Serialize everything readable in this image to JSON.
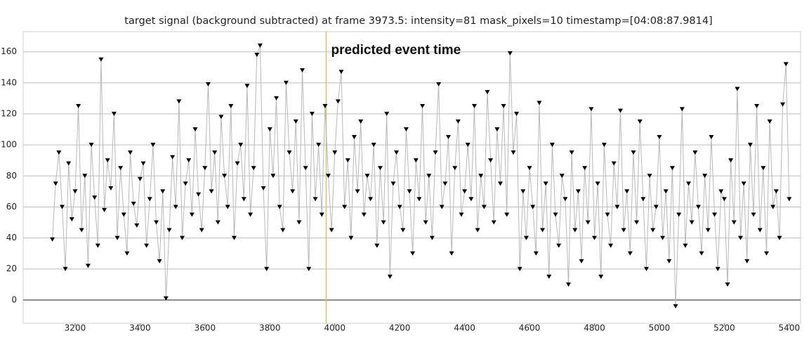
{
  "chart_data": {
    "type": "scatter",
    "title": "target signal (background subtracted) at frame 3973.5: intensity=81 mask_pixels=10 timestamp=[04:08:87.9814]",
    "annotation": "predicted event time",
    "event_x": 3973.5,
    "event_color": "#c8c86e",
    "xlim": [
      3040,
      5435
    ],
    "ylim": [
      -15,
      173
    ],
    "xticks": [
      3200,
      3400,
      3600,
      3800,
      4000,
      4200,
      4400,
      4600,
      4800,
      5000,
      5200,
      5400
    ],
    "yticks": [
      0,
      20,
      40,
      60,
      80,
      100,
      120,
      140,
      160
    ],
    "grid": true,
    "series": [
      {
        "color": "#000000",
        "line_color": "#b8b8b8",
        "x": [
          3130,
          3140,
          3150,
          3160,
          3170,
          3180,
          3190,
          3200,
          3210,
          3220,
          3230,
          3240,
          3250,
          3260,
          3270,
          3280,
          3290,
          3300,
          3310,
          3320,
          3330,
          3340,
          3350,
          3360,
          3370,
          3380,
          3390,
          3400,
          3410,
          3420,
          3430,
          3440,
          3450,
          3460,
          3470,
          3480,
          3490,
          3500,
          3510,
          3520,
          3530,
          3540,
          3550,
          3560,
          3570,
          3580,
          3590,
          3600,
          3610,
          3620,
          3630,
          3640,
          3650,
          3660,
          3670,
          3680,
          3690,
          3700,
          3710,
          3720,
          3730,
          3740,
          3750,
          3760,
          3770,
          3780,
          3790,
          3800,
          3810,
          3820,
          3830,
          3840,
          3850,
          3860,
          3870,
          3880,
          3890,
          3900,
          3910,
          3920,
          3930,
          3940,
          3950,
          3960,
          3970,
          3980,
          3990,
          4000,
          4010,
          4020,
          4030,
          4040,
          4050,
          4060,
          4070,
          4080,
          4090,
          4100,
          4110,
          4120,
          4130,
          4140,
          4150,
          4160,
          4170,
          4180,
          4190,
          4200,
          4210,
          4220,
          4230,
          4240,
          4250,
          4260,
          4270,
          4280,
          4290,
          4300,
          4310,
          4320,
          4330,
          4340,
          4350,
          4360,
          4370,
          4380,
          4390,
          4400,
          4410,
          4420,
          4430,
          4440,
          4450,
          4460,
          4470,
          4480,
          4490,
          4500,
          4510,
          4520,
          4530,
          4540,
          4550,
          4560,
          4570,
          4580,
          4590,
          4600,
          4610,
          4620,
          4630,
          4640,
          4650,
          4660,
          4670,
          4680,
          4690,
          4700,
          4710,
          4720,
          4730,
          4740,
          4750,
          4760,
          4770,
          4780,
          4790,
          4800,
          4810,
          4820,
          4830,
          4840,
          4850,
          4860,
          4870,
          4880,
          4890,
          4900,
          4910,
          4920,
          4930,
          4940,
          4950,
          4960,
          4970,
          4980,
          4990,
          5000,
          5010,
          5020,
          5030,
          5040,
          5050,
          5060,
          5070,
          5080,
          5090,
          5100,
          5110,
          5120,
          5130,
          5140,
          5150,
          5160,
          5170,
          5180,
          5190,
          5200,
          5210,
          5220,
          5230,
          5240,
          5250,
          5260,
          5270,
          5280,
          5290,
          5300,
          5310,
          5320,
          5330,
          5340,
          5350,
          5360,
          5370,
          5380,
          5390,
          5400
        ],
        "values": [
          39,
          75,
          95,
          60,
          20,
          88,
          52,
          70,
          125,
          45,
          80,
          22,
          100,
          66,
          35,
          155,
          58,
          90,
          72,
          120,
          40,
          85,
          55,
          30,
          95,
          62,
          48,
          78,
          88,
          35,
          65,
          100,
          50,
          25,
          70,
          1,
          45,
          92,
          60,
          128,
          40,
          75,
          90,
          55,
          110,
          68,
          45,
          85,
          139,
          70,
          95,
          50,
          118,
          80,
          60,
          125,
          40,
          88,
          100,
          65,
          138,
          55,
          85,
          158,
          164,
          72,
          20,
          110,
          80,
          130,
          60,
          45,
          140,
          95,
          70,
          115,
          50,
          148,
          85,
          20,
          120,
          65,
          100,
          55,
          125,
          80,
          45,
          95,
          128,
          147,
          60,
          90,
          40,
          105,
          70,
          115,
          55,
          80,
          65,
          100,
          35,
          85,
          50,
          120,
          15,
          75,
          95,
          60,
          45,
          110,
          70,
          30,
          90,
          65,
          125,
          50,
          80,
          40,
          95,
          139,
          60,
          75,
          105,
          30,
          85,
          115,
          55,
          70,
          100,
          65,
          125,
          45,
          80,
          60,
          134,
          90,
          50,
          110,
          75,
          125,
          55,
          159,
          95,
          120,
          20,
          70,
          40,
          85,
          60,
          30,
          127,
          45,
          75,
          15,
          100,
          55,
          35,
          80,
          65,
          10,
          95,
          45,
          70,
          25,
          85,
          50,
          123,
          40,
          75,
          15,
          100,
          55,
          35,
          88,
          60,
          122,
          45,
          70,
          30,
          95,
          50,
          115,
          65,
          20,
          80,
          45,
          60,
          105,
          40,
          70,
          25,
          85,
          -4,
          55,
          123,
          35,
          75,
          50,
          95,
          60,
          30,
          80,
          45,
          105,
          55,
          20,
          70,
          65,
          10,
          90,
          50,
          136,
          40,
          75,
          25,
          100,
          55,
          125,
          45,
          85,
          30,
          115,
          60,
          70,
          40,
          126,
          152,
          65
        ]
      }
    ]
  }
}
